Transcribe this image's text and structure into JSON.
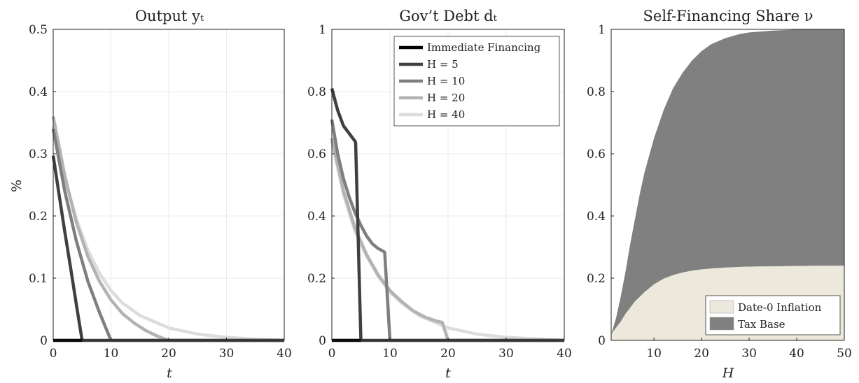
{
  "colors": {
    "immediate": "#000000",
    "H5": "#404040",
    "H10": "#7f7f7f",
    "H20": "#b3b3b3",
    "H40": "#dcdcdc",
    "inflation": "#ede8dc",
    "taxbase": "#808080",
    "grid": "#ebebeb",
    "axis": "#222222"
  },
  "chart_data": [
    {
      "type": "line",
      "title": "Output yₜ",
      "xlabel": "t",
      "ylabel": "%",
      "xlim": [
        0,
        40
      ],
      "ylim": [
        0,
        0.5
      ],
      "xticks": [
        "0",
        "10",
        "20",
        "30",
        "40"
      ],
      "yticks": [
        "0",
        "0.1",
        "0.2",
        "0.3",
        "0.4",
        "0.5"
      ],
      "grid": true,
      "series": [
        {
          "name": "Immediate Financing",
          "key": "immediate",
          "x": [
            0,
            5
          ],
          "y": [
            0,
            0
          ]
        },
        {
          "name": "H = 5",
          "key": "H5",
          "x": [
            0,
            1,
            2,
            3,
            4,
            5,
            40
          ],
          "y": [
            0.297,
            0.235,
            0.175,
            0.117,
            0.058,
            0,
            0
          ]
        },
        {
          "name": "H = 10",
          "key": "H10",
          "x": [
            0,
            2,
            4,
            6,
            8,
            10,
            40
          ],
          "y": [
            0.34,
            0.24,
            0.16,
            0.095,
            0.045,
            0,
            0
          ]
        },
        {
          "name": "H = 20",
          "key": "H20",
          "x": [
            0,
            2,
            4,
            6,
            8,
            10,
            12,
            14,
            16,
            18,
            20,
            40
          ],
          "y": [
            0.36,
            0.265,
            0.19,
            0.135,
            0.095,
            0.065,
            0.043,
            0.028,
            0.016,
            0.007,
            0,
            0
          ]
        },
        {
          "name": "H = 40",
          "key": "H40",
          "x": [
            0,
            2,
            4,
            6,
            8,
            10,
            12,
            15,
            20,
            25,
            30,
            35,
            40
          ],
          "y": [
            0.345,
            0.26,
            0.195,
            0.145,
            0.108,
            0.08,
            0.06,
            0.04,
            0.02,
            0.01,
            0.005,
            0.002,
            0
          ]
        }
      ]
    },
    {
      "type": "line",
      "title": "Gov’t Debt dₜ",
      "xlabel": "t",
      "xlim": [
        0,
        40
      ],
      "ylim": [
        0,
        1
      ],
      "xticks": [
        "0",
        "10",
        "20",
        "30",
        "40"
      ],
      "yticks": [
        "0",
        "0.2",
        "0.4",
        "0.6",
        "0.8",
        "1"
      ],
      "grid": true,
      "legend": {
        "position": "top-right",
        "entries": [
          {
            "label": "Immediate Financing",
            "key": "immediate"
          },
          {
            "label": "H = 5",
            "key": "H5"
          },
          {
            "label": "H = 10",
            "key": "H10"
          },
          {
            "label": "H = 20",
            "key": "H20"
          },
          {
            "label": "H = 40",
            "key": "H40"
          }
        ]
      },
      "series": [
        {
          "name": "Immediate Financing",
          "key": "immediate",
          "x": [
            0,
            5
          ],
          "y": [
            0,
            0
          ]
        },
        {
          "name": "H = 5",
          "key": "H5",
          "x": [
            0,
            1,
            2,
            3,
            4,
            4.1,
            5,
            40
          ],
          "y": [
            0.81,
            0.74,
            0.69,
            0.665,
            0.64,
            0.635,
            0,
            0
          ]
        },
        {
          "name": "H = 10",
          "key": "H10",
          "x": [
            0,
            1,
            2,
            3,
            4,
            5,
            6,
            7,
            8,
            9,
            9.1,
            10,
            40
          ],
          "y": [
            0.71,
            0.6,
            0.52,
            0.46,
            0.41,
            0.37,
            0.335,
            0.31,
            0.295,
            0.285,
            0.283,
            0,
            0
          ]
        },
        {
          "name": "H = 20",
          "key": "H20",
          "x": [
            0,
            2,
            4,
            6,
            8,
            10,
            12,
            14,
            16,
            18,
            19,
            20,
            40
          ],
          "y": [
            0.65,
            0.48,
            0.36,
            0.275,
            0.21,
            0.16,
            0.125,
            0.095,
            0.075,
            0.062,
            0.058,
            0,
            0
          ]
        },
        {
          "name": "H = 40",
          "key": "H40",
          "x": [
            0,
            2,
            4,
            6,
            8,
            10,
            12,
            15,
            20,
            25,
            30,
            35,
            40
          ],
          "y": [
            0.64,
            0.47,
            0.35,
            0.27,
            0.205,
            0.155,
            0.12,
            0.08,
            0.04,
            0.02,
            0.01,
            0.005,
            0
          ]
        }
      ]
    },
    {
      "type": "area",
      "title": "Self-Financing Share ν",
      "xlabel": "H",
      "xlim": [
        1,
        50
      ],
      "ylim": [
        0,
        1
      ],
      "xticks": [
        "10",
        "20",
        "30",
        "40",
        "50"
      ],
      "yticks": [
        "0",
        "0.2",
        "0.4",
        "0.6",
        "0.8",
        "1"
      ],
      "grid": false,
      "legend": {
        "position": "bottom-right",
        "entries": [
          {
            "label": "Date-0 Inflation",
            "key": "inflation"
          },
          {
            "label": "Tax Base",
            "key": "taxbase"
          }
        ]
      },
      "x": [
        1,
        2,
        3,
        4,
        5,
        6,
        7,
        8,
        10,
        12,
        14,
        16,
        18,
        20,
        22,
        25,
        28,
        30,
        35,
        40,
        45,
        50
      ],
      "series": [
        {
          "name": "Date-0 Inflation",
          "key": "inflation",
          "values": [
            0.02,
            0.04,
            0.06,
            0.085,
            0.105,
            0.125,
            0.14,
            0.155,
            0.18,
            0.198,
            0.21,
            0.218,
            0.224,
            0.228,
            0.231,
            0.234,
            0.236,
            0.237,
            0.238,
            0.239,
            0.24,
            0.24
          ]
        },
        {
          "name": "Tax Base",
          "key": "taxbase",
          "values": [
            0.02,
            0.07,
            0.14,
            0.22,
            0.31,
            0.39,
            0.47,
            0.54,
            0.65,
            0.74,
            0.81,
            0.86,
            0.9,
            0.93,
            0.952,
            0.972,
            0.985,
            0.99,
            0.996,
            0.999,
            1.0,
            1.0
          ]
        }
      ]
    }
  ]
}
